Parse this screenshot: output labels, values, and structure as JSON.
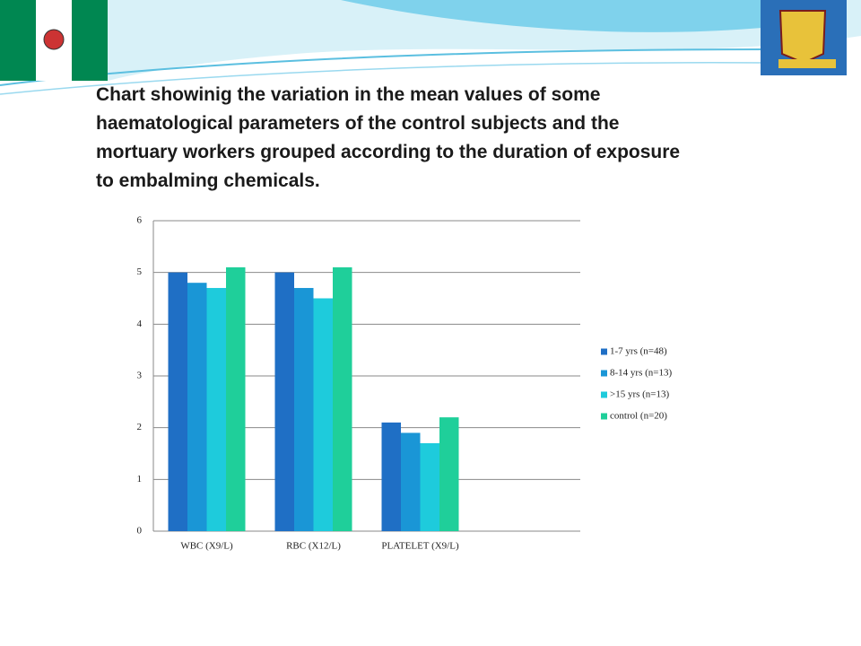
{
  "chart_data": {
    "type": "bar",
    "title": "Chart showinig the variation in the mean values of some haematological parameters of the control subjects and the mortuary workers grouped according to the duration of exposure to embalming chemicals.",
    "categories": [
      "WBC (X9/L)",
      "RBC (X12/L)",
      "PLATELET (X9/L)",
      null
    ],
    "series": [
      {
        "name": "1-7 yrs (n=48)",
        "color": "#1f6fc5",
        "values": [
          5,
          5,
          2.1,
          null
        ]
      },
      {
        "name": "8-14 yrs (n=13)",
        "color": "#1a96d6",
        "values": [
          4.8,
          4.7,
          1.9,
          null
        ]
      },
      {
        "name": ">15 yrs (n=13)",
        "color": "#1ecbdc",
        "values": [
          4.7,
          4.5,
          1.7,
          null
        ]
      },
      {
        "name": "control (n=20)",
        "color": "#1fcf9a",
        "values": [
          5.1,
          5.1,
          2.2,
          null
        ]
      }
    ],
    "ylim": [
      0,
      6
    ],
    "yticks": [
      0,
      1,
      2,
      3,
      4,
      5,
      6
    ],
    "grid": true,
    "legend": "right"
  }
}
